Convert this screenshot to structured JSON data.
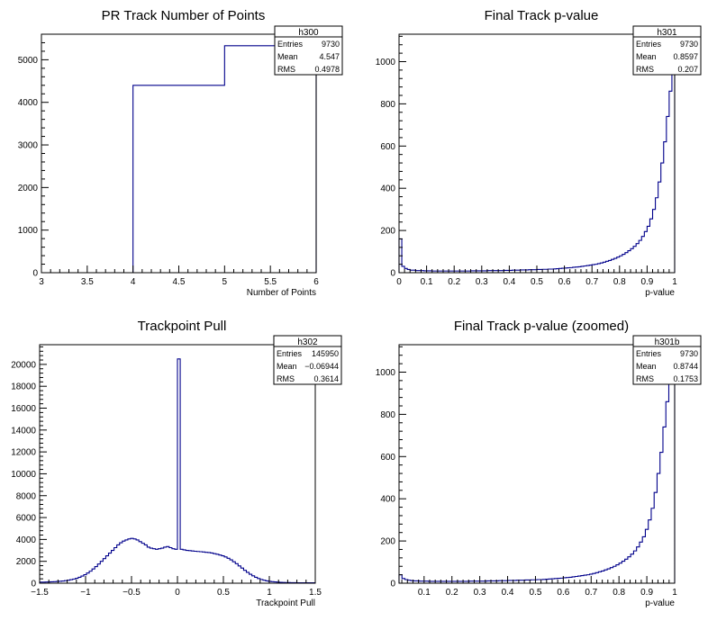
{
  "colors": {
    "hist_line": "#00008b",
    "axis": "#000000",
    "background": "#ffffff"
  },
  "chart_data": [
    {
      "type": "histogram",
      "title": "PR Track Number of Points",
      "xlabel": "Number of Points",
      "ylabel": "",
      "xlim": [
        3,
        6
      ],
      "ylim": [
        0,
        5600
      ],
      "x_ticks": [
        "3",
        "3.5",
        "4",
        "4.5",
        "5",
        "5.5",
        "6"
      ],
      "y_ticks": [
        "0",
        "1000",
        "2000",
        "3000",
        "4000",
        "5000"
      ],
      "bins": {
        "edges": [
          3,
          4,
          5,
          6
        ],
        "values": [
          0,
          4400,
          5330
        ]
      },
      "stats": {
        "name": "h300",
        "rows": [
          [
            "Entries",
            "9730"
          ],
          [
            "Mean",
            "4.547"
          ],
          [
            "RMS",
            "0.4978"
          ]
        ]
      }
    },
    {
      "type": "histogram",
      "title": "Final Track p-value",
      "xlabel": "p-value",
      "ylabel": "",
      "xlim": [
        0,
        1
      ],
      "ylim": [
        0,
        1130
      ],
      "x_ticks": [
        "0",
        "0.1",
        "0.2",
        "0.3",
        "0.4",
        "0.5",
        "0.6",
        "0.7",
        "0.8",
        "0.9",
        "1"
      ],
      "y_ticks": [
        "0",
        "200",
        "400",
        "600",
        "800",
        "1000"
      ],
      "bins": {
        "range": [
          0,
          1
        ],
        "values": [
          160,
          30,
          20,
          15,
          12,
          12,
          10,
          10,
          10,
          9,
          9,
          9,
          8,
          8,
          8,
          8,
          8,
          8,
          8,
          8,
          8,
          8,
          8,
          8,
          8,
          8,
          9,
          9,
          9,
          9,
          9,
          9,
          10,
          10,
          10,
          10,
          10,
          10,
          11,
          11,
          11,
          12,
          12,
          12,
          13,
          13,
          13,
          14,
          14,
          14,
          15,
          15,
          16,
          16,
          17,
          17,
          18,
          19,
          20,
          21,
          22,
          23,
          24,
          26,
          27,
          28,
          30,
          32,
          34,
          36,
          38,
          40,
          43,
          46,
          50,
          54,
          58,
          63,
          68,
          74,
          80,
          87,
          95,
          104,
          114,
          125,
          138,
          153,
          172,
          195,
          220,
          255,
          300,
          355,
          430,
          520,
          620,
          740,
          860,
          990
        ]
      },
      "stats": {
        "name": "h301",
        "rows": [
          [
            "Entries",
            "9730"
          ],
          [
            "Mean",
            "0.8597"
          ],
          [
            "RMS",
            "0.207"
          ]
        ]
      }
    },
    {
      "type": "histogram",
      "title": "Trackpoint Pull",
      "xlabel": "Trackpoint Pull",
      "ylabel": "",
      "xlim": [
        -1.5,
        1.5
      ],
      "ylim": [
        0,
        21800
      ],
      "x_ticks": [
        "−1.5",
        "−1",
        "−0.5",
        "0",
        "0.5",
        "1",
        "1.5"
      ],
      "y_ticks": [
        "0",
        "2000",
        "4000",
        "6000",
        "8000",
        "10000",
        "12000",
        "14000",
        "16000",
        "18000",
        "20000"
      ],
      "bins": {
        "range": [
          -1.5,
          1.5
        ],
        "values": [
          100,
          100,
          110,
          120,
          130,
          140,
          160,
          180,
          200,
          230,
          270,
          320,
          380,
          450,
          540,
          650,
          780,
          930,
          1100,
          1300,
          1520,
          1750,
          2000,
          2250,
          2500,
          2750,
          3000,
          3250,
          3500,
          3700,
          3850,
          3950,
          4050,
          4100,
          4050,
          3950,
          3800,
          3650,
          3500,
          3300,
          3200,
          3150,
          3100,
          3150,
          3200,
          3300,
          3350,
          3250,
          3150,
          3100,
          20500,
          3100,
          3050,
          3000,
          2980,
          2950,
          2920,
          2900,
          2880,
          2850,
          2820,
          2800,
          2760,
          2700,
          2650,
          2580,
          2500,
          2400,
          2280,
          2130,
          1960,
          1780,
          1580,
          1380,
          1180,
          990,
          820,
          670,
          540,
          430,
          340,
          270,
          210,
          170,
          140,
          115,
          95,
          80,
          70,
          62,
          55,
          50,
          45,
          42,
          40,
          38,
          36,
          35,
          34,
          33
        ]
      },
      "stats": {
        "name": "h302",
        "rows": [
          [
            "Entries",
            "145950"
          ],
          [
            "Mean",
            "−0.06944"
          ],
          [
            "RMS",
            "0.3614"
          ]
        ]
      }
    },
    {
      "type": "histogram",
      "title": "Final Track p-value (zoomed)",
      "xlabel": "p-value",
      "ylabel": "",
      "xlim": [
        0.01,
        1
      ],
      "ylim": [
        0,
        1130
      ],
      "x_ticks": [
        "0.1",
        "0.2",
        "0.3",
        "0.4",
        "0.5",
        "0.6",
        "0.7",
        "0.8",
        "0.9",
        "1"
      ],
      "y_ticks": [
        "0",
        "200",
        "400",
        "600",
        "800",
        "1000"
      ],
      "bins": {
        "range": [
          0.01,
          1
        ],
        "values": [
          40,
          22,
          17,
          14,
          12,
          11,
          11,
          10,
          10,
          10,
          9,
          9,
          9,
          9,
          9,
          9,
          9,
          9,
          9,
          9,
          9,
          9,
          9,
          9,
          10,
          10,
          10,
          10,
          10,
          10,
          11,
          11,
          11,
          11,
          12,
          12,
          12,
          13,
          13,
          13,
          14,
          14,
          14,
          15,
          15,
          16,
          16,
          17,
          17,
          18,
          19,
          20,
          21,
          22,
          23,
          24,
          26,
          27,
          28,
          30,
          32,
          34,
          36,
          38,
          40,
          43,
          46,
          50,
          54,
          58,
          63,
          68,
          74,
          80,
          87,
          95,
          104,
          114,
          125,
          138,
          153,
          172,
          195,
          220,
          255,
          300,
          355,
          430,
          520,
          620,
          740,
          860,
          990,
          1100
        ]
      },
      "stats": {
        "name": "h301b",
        "rows": [
          [
            "Entries",
            "9730"
          ],
          [
            "Mean",
            "0.8744"
          ],
          [
            "RMS",
            "0.1753"
          ]
        ]
      }
    }
  ]
}
